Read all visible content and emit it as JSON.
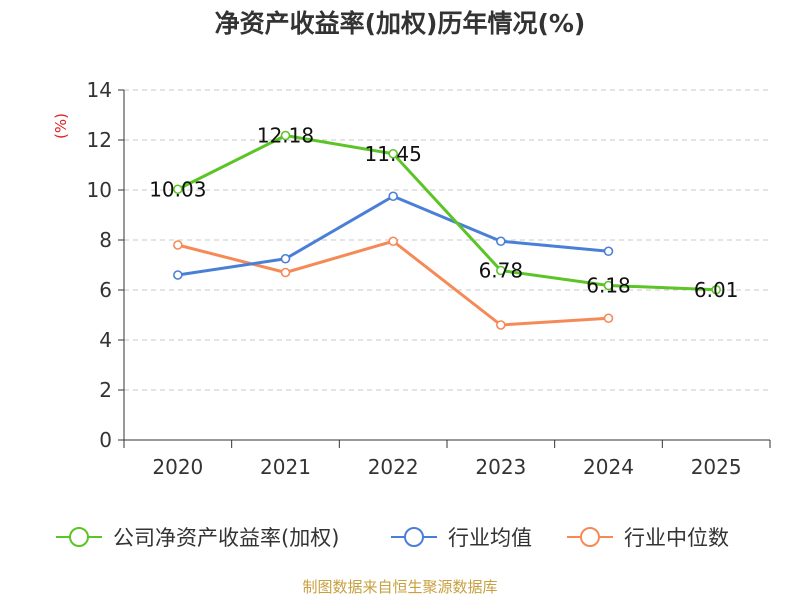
{
  "chart_data": {
    "type": "line",
    "title": "净资产收益率(加权)历年情况(%)",
    "ylabel": "(%)",
    "xlabel": "",
    "categories": [
      "2020",
      "2021",
      "2022",
      "2023",
      "2024",
      "2025"
    ],
    "ylim": [
      0,
      14
    ],
    "yticks": [
      0,
      2,
      4,
      6,
      8,
      10,
      12,
      14
    ],
    "grid": true,
    "legend_position": "bottom",
    "series": [
      {
        "name": "公司净资产收益率(加权)",
        "color": "#5cc426",
        "values": [
          10.03,
          12.18,
          11.45,
          6.78,
          6.18,
          6.01
        ],
        "labels": [
          "10.03",
          "12.18",
          "11.45",
          "6.78",
          "6.18",
          "6.01"
        ]
      },
      {
        "name": "行业均值",
        "color": "#4a7fd8",
        "values": [
          6.6,
          7.25,
          9.75,
          7.95,
          7.55,
          null
        ]
      },
      {
        "name": "行业中位数",
        "color": "#f58a57",
        "values": [
          7.8,
          6.7,
          7.95,
          4.6,
          4.87,
          null
        ]
      }
    ],
    "source": "制图数据来自恒生聚源数据库"
  }
}
